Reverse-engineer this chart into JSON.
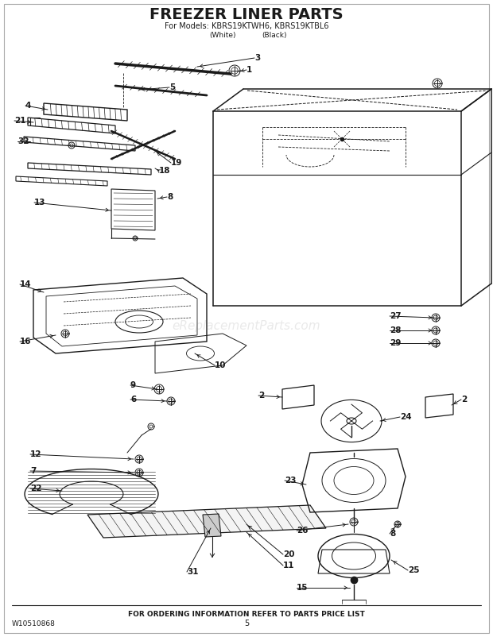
{
  "title": "FREEZER LINER PARTS",
  "subtitle1": "For Models: KBRS19KTWH6, KBRS19KTBL6",
  "subtitle2_white": "(White)",
  "subtitle2_black": "(Black)",
  "footer_left": "W10510868",
  "footer_center": "FOR ORDERING INFORMATION REFER TO PARTS PRICE LIST",
  "footer_page": "5",
  "watermark": "eReplacementParts.com",
  "bg_color": "#ffffff",
  "line_color": "#1a1a1a"
}
